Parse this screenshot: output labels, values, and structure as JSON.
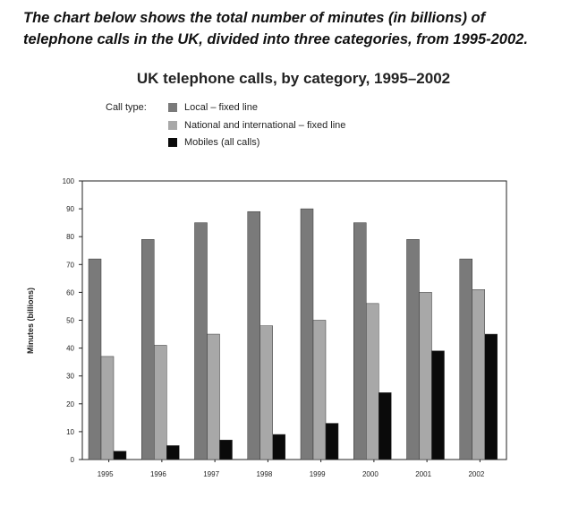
{
  "intro": {
    "line1": "The chart below shows the total number of minutes (in billions) of",
    "line2": "telephone calls in the UK, divided into three categories, from 1995-2002."
  },
  "chart_data": {
    "type": "bar",
    "title": "UK telephone calls, by category, 1995–2002",
    "legend_title": "Call type:",
    "legend_position": "top-left",
    "xlabel": "",
    "ylabel": "Minutes (billions)",
    "ylim": [
      0,
      100
    ],
    "yticks": [
      0,
      10,
      20,
      30,
      40,
      50,
      60,
      70,
      80,
      90,
      100
    ],
    "grid": false,
    "categories": [
      "1995",
      "1996",
      "1997",
      "1998",
      "1999",
      "2000",
      "2001",
      "2002"
    ],
    "series": [
      {
        "name": "Local – fixed line",
        "color": "#7a7a7a",
        "values": [
          72,
          79,
          85,
          89,
          90,
          85,
          79,
          72
        ]
      },
      {
        "name": "National and international – fixed line",
        "color": "#a8a8a8",
        "values": [
          37,
          41,
          45,
          48,
          50,
          56,
          60,
          61
        ]
      },
      {
        "name": "Mobiles (all calls)",
        "color": "#0a0a0a",
        "values": [
          3,
          5,
          7,
          9,
          13,
          24,
          39,
          45
        ]
      }
    ]
  }
}
